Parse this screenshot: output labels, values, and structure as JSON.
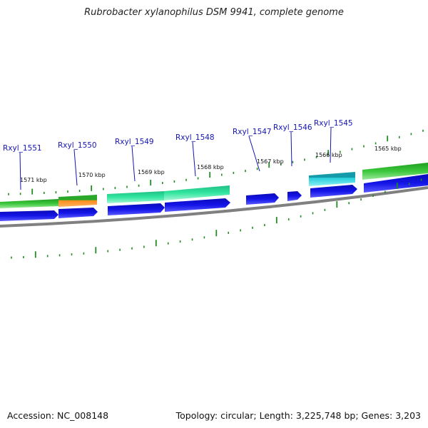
{
  "header": {
    "title": "Rubrobacter xylanophilus DSM 9941, complete genome"
  },
  "footer": {
    "accession": "Accession: NC_008148",
    "summary": "Topology: circular; Length: 3,225,748 bp; Genes: 3,203"
  },
  "genes": [
    {
      "label": "Rxyl_1551"
    },
    {
      "label": "Rxyl_1550"
    },
    {
      "label": "Rxyl_1549"
    },
    {
      "label": "Rxyl_1548"
    },
    {
      "label": "Rxyl_1547"
    },
    {
      "label": "Rxyl_1546"
    },
    {
      "label": "Rxyl_1545"
    }
  ],
  "ruler": [
    {
      "label": "1571 kbp"
    },
    {
      "label": "1570 kbp"
    },
    {
      "label": "1569 kbp"
    },
    {
      "label": "1568 kbp"
    },
    {
      "label": "1567 kbp"
    },
    {
      "label": "1566 kbp"
    },
    {
      "label": "1565 kbp"
    }
  ],
  "colors": {
    "gene_label": "#1414b4",
    "cds_arrow": "#1010e0",
    "backbone": "#808080",
    "tick": "#228b22",
    "feature_green": "#3cc83c",
    "feature_mint": "#33e6a0",
    "feature_orange": "#ff8c1a",
    "feature_cyan": "#22ccd8"
  }
}
